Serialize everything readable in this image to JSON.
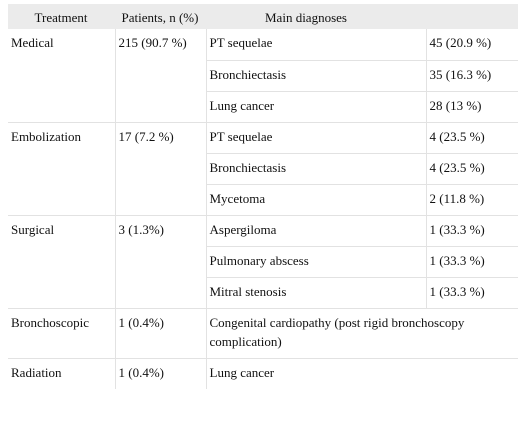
{
  "table": {
    "headers": {
      "treatment": "Treatment",
      "patients": "Patients, n (%)",
      "diagnoses": "Main diagnoses"
    },
    "groups": [
      {
        "treatment": "Medical",
        "patients": "215 (90.7 %)",
        "rows": [
          {
            "diagnosis": "PT sequelae",
            "value": "45 (20.9 %)"
          },
          {
            "diagnosis": "Bronchiectasis",
            "value": "35 (16.3 %)"
          },
          {
            "diagnosis": "Lung cancer",
            "value": "28 (13 %)"
          }
        ]
      },
      {
        "treatment": "Embolization",
        "patients": "17 (7.2 %)",
        "rows": [
          {
            "diagnosis": "PT sequelae",
            "value": "4 (23.5 %)"
          },
          {
            "diagnosis": "Bronchiectasis",
            "value": "4 (23.5 %)"
          },
          {
            "diagnosis": "Mycetoma",
            "value": "2 (11.8 %)"
          }
        ]
      },
      {
        "treatment": "Surgical",
        "patients": "3 (1.3%)",
        "rows": [
          {
            "diagnosis": "Aspergiloma",
            "value": "1 (33.3 %)"
          },
          {
            "diagnosis": "Pulmonary abscess",
            "value": "1 (33.3 %)"
          },
          {
            "diagnosis": "Mitral stenosis",
            "value": "1 (33.3 %)"
          }
        ]
      },
      {
        "treatment": "Bronchoscopic",
        "patients": "1 (0.4%)",
        "rows": [
          {
            "diagnosis": "Congenital cardiopathy (post rigid bronchoscopy complication)",
            "value": ""
          }
        ]
      },
      {
        "treatment": "Radiation",
        "patients": "1 (0.4%)",
        "rows": [
          {
            "diagnosis": "Lung cancer",
            "value": ""
          }
        ]
      }
    ]
  }
}
